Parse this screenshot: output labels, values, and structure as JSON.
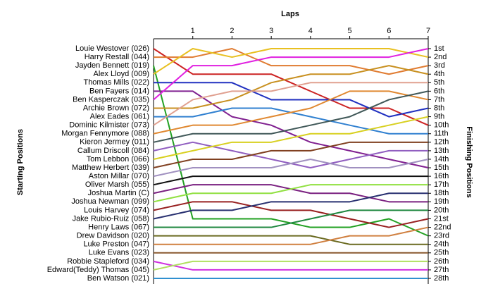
{
  "chart_data": {
    "type": "bump",
    "title": "Laps",
    "y_title_left": "Starting Positions",
    "y_title_right": "Finishing Positions",
    "x": [
      0,
      1,
      2,
      3,
      4,
      5,
      6,
      7
    ],
    "xlim": [
      0,
      7
    ],
    "xticks": [
      1,
      2,
      3,
      4,
      5,
      6,
      7
    ],
    "ylim": [
      1,
      28
    ],
    "y_inverted": true,
    "yticks": [
      {
        "value": 1,
        "label": "1st"
      },
      {
        "value": 2,
        "label": "2nd"
      },
      {
        "value": 3,
        "label": "3rd"
      },
      {
        "value": 4,
        "label": "4th"
      },
      {
        "value": 5,
        "label": "5th"
      },
      {
        "value": 6,
        "label": "6th"
      },
      {
        "value": 7,
        "label": "7th"
      },
      {
        "value": 8,
        "label": "8th"
      },
      {
        "value": 9,
        "label": "9th"
      },
      {
        "value": 10,
        "label": "10th"
      },
      {
        "value": 11,
        "label": "11th"
      },
      {
        "value": 12,
        "label": "12th"
      },
      {
        "value": 13,
        "label": "13th"
      },
      {
        "value": 14,
        "label": "14th"
      },
      {
        "value": 15,
        "label": "15th"
      },
      {
        "value": 16,
        "label": "16th"
      },
      {
        "value": 17,
        "label": "17th"
      },
      {
        "value": 18,
        "label": "18th"
      },
      {
        "value": 19,
        "label": "19th"
      },
      {
        "value": 20,
        "label": "20th"
      },
      {
        "value": 21,
        "label": "21st"
      },
      {
        "value": 22,
        "label": "22nd"
      },
      {
        "value": 23,
        "label": "23rd"
      },
      {
        "value": 24,
        "label": "24th"
      },
      {
        "value": 25,
        "label": "25th"
      },
      {
        "value": 26,
        "label": "26th"
      },
      {
        "value": 27,
        "label": "27th"
      },
      {
        "value": 28,
        "label": "28th"
      }
    ],
    "series": [
      {
        "name": "Louie Westover (026)",
        "color": "#cc2222",
        "values": [
          1,
          4,
          4,
          4,
          6,
          8,
          8,
          10
        ]
      },
      {
        "name": "Harry Restall (044)",
        "color": "#e07b30",
        "values": [
          2,
          2,
          1,
          3,
          3,
          3,
          4,
          3
        ]
      },
      {
        "name": "Jayden Bennett (019)",
        "color": "#22a022",
        "values": [
          3,
          21,
          21,
          21,
          22,
          22,
          21,
          23
        ]
      },
      {
        "name": "Alex Lloyd (009)",
        "color": "#e8c020",
        "values": [
          4,
          1,
          2,
          1,
          1,
          1,
          1,
          2
        ]
      },
      {
        "name": "Thomas Mills (022)",
        "color": "#2030c0",
        "values": [
          5,
          5,
          5,
          7,
          7,
          7,
          9,
          8
        ]
      },
      {
        "name": "Ben Fayers (014)",
        "color": "#802090",
        "values": [
          6,
          6,
          9,
          10,
          12,
          13,
          14,
          15
        ]
      },
      {
        "name": "Ben Kasperczak (035)",
        "color": "#e020e0",
        "values": [
          7,
          3,
          3,
          2,
          2,
          2,
          2,
          1
        ]
      },
      {
        "name": "Archie Brown (072)",
        "color": "#c89020",
        "values": [
          8,
          8,
          7,
          5,
          4,
          4,
          3,
          4
        ]
      },
      {
        "name": "Alex Eades (061)",
        "color": "#3080d0",
        "values": [
          9,
          9,
          8,
          8,
          9,
          10,
          11,
          11
        ]
      },
      {
        "name": "Dominic Kilmister (073)",
        "color": "#e0a090",
        "values": [
          10,
          7,
          6,
          6,
          5,
          5,
          5,
          5
        ]
      },
      {
        "name": "Morgan Fennymore (088)",
        "color": "#e08830",
        "values": [
          11,
          10,
          10,
          9,
          8,
          6,
          6,
          7
        ]
      },
      {
        "name": "Kieron Jermey (011)",
        "color": "#405858",
        "values": [
          12,
          11,
          11,
          11,
          10,
          9,
          7,
          6
        ]
      },
      {
        "name": "Callum Driscoll (084)",
        "color": "#905ec0",
        "values": [
          13,
          12,
          13,
          14,
          15,
          14,
          13,
          13
        ]
      },
      {
        "name": "Tom Lebbon (066)",
        "color": "#d8d020",
        "values": [
          14,
          13,
          12,
          12,
          11,
          11,
          10,
          9
        ]
      },
      {
        "name": "Matthew Herbert (039)",
        "color": "#804020",
        "values": [
          15,
          14,
          14,
          13,
          13,
          12,
          12,
          12
        ]
      },
      {
        "name": "Aston Millar (070)",
        "color": "#a090c0",
        "values": [
          16,
          15,
          15,
          15,
          14,
          15,
          15,
          14
        ]
      },
      {
        "name": "Oliver Marsh (055)",
        "color": "#101010",
        "values": [
          17,
          16,
          16,
          16,
          16,
          16,
          16,
          16
        ]
      },
      {
        "name": "Joshua Martin (C)",
        "color": "#7a2080",
        "values": [
          18,
          17,
          17,
          17,
          18,
          18,
          19,
          19
        ]
      },
      {
        "name": "Joshua Newman (099)",
        "color": "#90e040",
        "values": [
          19,
          18,
          18,
          18,
          17,
          17,
          17,
          17
        ]
      },
      {
        "name": "Louis Harvey (074)",
        "color": "#982020",
        "values": [
          20,
          19,
          19,
          20,
          20,
          21,
          22,
          21
        ]
      },
      {
        "name": "Jake Rubio-Ruiz (058)",
        "color": "#283070",
        "values": [
          21,
          20,
          20,
          19,
          19,
          19,
          18,
          18
        ]
      },
      {
        "name": "Henry Laws (067)",
        "color": "#208840",
        "values": [
          22,
          22,
          22,
          22,
          21,
          20,
          20,
          20
        ]
      },
      {
        "name": "Drew Davidson (020)",
        "color": "#6a6a20",
        "values": [
          23,
          23,
          23,
          23,
          23,
          24,
          24,
          24
        ]
      },
      {
        "name": "Luke Preston (047)",
        "color": "#d08040",
        "values": [
          24,
          24,
          24,
          24,
          24,
          23,
          23,
          22
        ]
      },
      {
        "name": "Luke Evans (023)",
        "color": "#8a5a30",
        "values": [
          25,
          25,
          25,
          25,
          25,
          25,
          25,
          25
        ]
      },
      {
        "name": "Robbie Stapleford (034)",
        "color": "#d030e0",
        "values": [
          26,
          27,
          27,
          27,
          27,
          27,
          27,
          27
        ]
      },
      {
        "name": "Edward(Teddy) Thomas (045)",
        "color": "#b0e060",
        "values": [
          27,
          26,
          26,
          26,
          26,
          26,
          26,
          26
        ]
      },
      {
        "name": "Ben Watson (021)",
        "color": "#3090d0",
        "values": [
          28,
          28,
          28,
          28,
          28,
          28,
          28,
          28
        ]
      }
    ]
  }
}
